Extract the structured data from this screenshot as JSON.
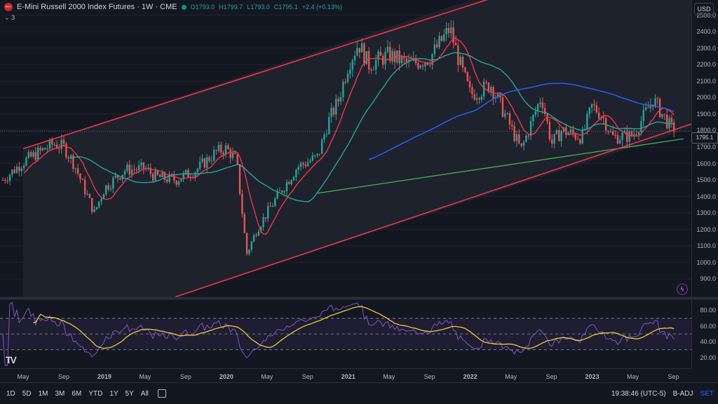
{
  "header": {
    "symbol_title": "E-Mini Russell 2000 Index Futures · 1W · CME",
    "open": "O1793.0",
    "high": "H1799.7",
    "low": "L1793.0",
    "close": "C1795.1",
    "change": "+2.4 (+0.13%)",
    "indicator_count": "3",
    "logo_text": "RTY"
  },
  "currency": "USD",
  "last_price": "1795.1",
  "price_ticks": [
    "2500.0",
    "2400.0",
    "2300.0",
    "2200.0",
    "2100.0",
    "2000.0",
    "1900.0",
    "1800.0",
    "1700.0",
    "1600.0",
    "1500.0",
    "1400.0",
    "1300.0",
    "1200.0",
    "1100.0",
    "1000.0",
    "900.0"
  ],
  "rsi_ticks": [
    "80.00",
    "60.00",
    "40.00",
    "20.00"
  ],
  "time_ticks": [
    "May",
    "Sep",
    "2019",
    "May",
    "Sep",
    "2020",
    "May",
    "Sep",
    "2021",
    "May",
    "Sep",
    "2022",
    "May",
    "Sep",
    "2023",
    "May",
    "Sep"
  ],
  "range_buttons": [
    "1D",
    "5D",
    "1M",
    "3M",
    "6M",
    "YTD",
    "1Y",
    "5Y",
    "All"
  ],
  "clock": "19:38:46 (UTC-5)",
  "badj": "B-ADJ",
  "set": "SET",
  "colors": {
    "up": "#26a69a",
    "down": "#ef5350",
    "channel": "#f23645",
    "ma_fast": "#f23645",
    "ma_mid": "#26a69a",
    "ma_slow": "#2962ff",
    "trend": "#4caf50",
    "rsi": "#7e57c2",
    "rsi_ma": "#fdd835"
  },
  "chart_data": {
    "type": "candlestick",
    "title": "E-Mini Russell 2000 Index Futures · 1W · CME",
    "ylim": [
      850,
      2550
    ],
    "x_start": "2018-03",
    "x_end": "2023-10",
    "anchors": [
      [
        "2018-03",
        1500
      ],
      [
        "2018-05",
        1610
      ],
      [
        "2018-08",
        1720
      ],
      [
        "2018-09",
        1700
      ],
      [
        "2018-10",
        1600
      ],
      [
        "2018-12",
        1300
      ],
      [
        "2019-01",
        1450
      ],
      [
        "2019-03",
        1560
      ],
      [
        "2019-05",
        1570
      ],
      [
        "2019-06",
        1520
      ],
      [
        "2019-08",
        1500
      ],
      [
        "2019-10",
        1560
      ],
      [
        "2019-12",
        1670
      ],
      [
        "2020-01",
        1690
      ],
      [
        "2020-02",
        1620
      ],
      [
        "2020-03",
        1050
      ],
      [
        "2020-04",
        1200
      ],
      [
        "2020-06",
        1400
      ],
      [
        "2020-08",
        1580
      ],
      [
        "2020-10",
        1640
      ],
      [
        "2020-11",
        1850
      ],
      [
        "2020-12",
        1980
      ],
      [
        "2021-01",
        2200
      ],
      [
        "2021-02",
        2330
      ],
      [
        "2021-03",
        2200
      ],
      [
        "2021-05",
        2260
      ],
      [
        "2021-07",
        2200
      ],
      [
        "2021-09",
        2240
      ],
      [
        "2021-11",
        2420
      ],
      [
        "2021-12",
        2200
      ],
      [
        "2022-01",
        2020
      ],
      [
        "2022-02",
        2040
      ],
      [
        "2022-03",
        2080
      ],
      [
        "2022-05",
        1820
      ],
      [
        "2022-06",
        1680
      ],
      [
        "2022-08",
        2010
      ],
      [
        "2022-09",
        1720
      ],
      [
        "2022-10",
        1800
      ],
      [
        "2022-12",
        1760
      ],
      [
        "2023-01",
        1950
      ],
      [
        "2023-02",
        1890
      ],
      [
        "2023-03",
        1760
      ],
      [
        "2023-05",
        1770
      ],
      [
        "2023-07",
        1990
      ],
      [
        "2023-08",
        1890
      ],
      [
        "2023-09",
        1795.1
      ]
    ],
    "rsi_ylim": [
      10,
      90
    ],
    "rsi_levels": [
      70,
      50,
      30
    ]
  }
}
